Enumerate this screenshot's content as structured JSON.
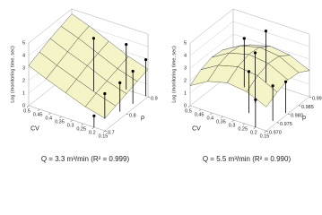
{
  "chart_data": [
    {
      "type": "surface3d",
      "caption": "Q = 3.3 m³/min (R² = 0.999)",
      "xlabel": "CV",
      "ylabel": "ρ",
      "zlabel": "Log (monitoring time, sec)",
      "xlim": [
        0.5,
        0.15
      ],
      "xticks": [
        0.5,
        0.45,
        0.4,
        0.35,
        0.3,
        0.25,
        0.2,
        0.15
      ],
      "ylim": [
        0.7,
        0.9
      ],
      "yticks": [
        0.7,
        0.8,
        0.9
      ],
      "zlim": [
        0,
        5
      ],
      "zticks": [
        0,
        1,
        2,
        3,
        4,
        5
      ],
      "surface": {
        "x": [
          0.5,
          0.42,
          0.33,
          0.24,
          0.15
        ],
        "y": [
          0.7,
          0.75,
          0.8,
          0.85,
          0.9
        ],
        "z": [
          [
            3.2,
            2.6,
            2.0,
            1.4,
            1.0
          ],
          [
            3.6,
            3.0,
            2.4,
            1.8,
            1.3
          ],
          [
            4.0,
            3.4,
            2.8,
            2.1,
            1.6
          ],
          [
            4.3,
            3.8,
            3.1,
            2.4,
            1.9
          ],
          [
            4.6,
            4.1,
            3.4,
            2.7,
            2.2
          ]
        ]
      },
      "points": {
        "x": [
          0.35,
          0.25,
          0.2,
          0.18,
          0.17,
          0.16,
          0.2
        ],
        "y": [
          0.85,
          0.9,
          0.75,
          0.8,
          0.85,
          0.9,
          0.7
        ],
        "z": [
          4.2,
          3.6,
          2.0,
          2.3,
          2.6,
          2.9,
          0.9
        ]
      },
      "surface_color": "#f4f4c6",
      "line_color": "#333333"
    },
    {
      "type": "surface3d",
      "caption": "Q = 5.5 m³/min (R² = 0.990)",
      "xlabel": "CV",
      "ylabel": "ρ",
      "zlabel": "Log (monitoring time, sec)",
      "xlim": [
        0.5,
        0.15
      ],
      "xticks": [
        0.5,
        0.45,
        0.4,
        0.35,
        0.3,
        0.25,
        0.2,
        0.15
      ],
      "ylim": [
        0.97,
        0.99
      ],
      "yticks": [
        {
          "value": 0.97,
          "label": "0.970"
        },
        {
          "value": 0.975,
          "label": "0.975"
        },
        {
          "value": 0.98,
          "label": "0.980"
        },
        {
          "value": 0.985,
          "label": "0.985"
        },
        {
          "value": 0.99,
          "label": "0.990"
        }
      ],
      "zlim": [
        0,
        5
      ],
      "zticks": [
        0,
        1,
        2,
        3,
        4,
        5
      ],
      "surface": {
        "x": [
          0.5,
          0.42,
          0.33,
          0.24,
          0.15
        ],
        "y": [
          0.97,
          0.975,
          0.98,
          0.985,
          0.99
        ],
        "z": [
          [
            1.6,
            2.4,
            2.8,
            2.6,
            1.9
          ],
          [
            2.2,
            3.0,
            3.4,
            3.2,
            2.4
          ],
          [
            2.5,
            3.3,
            3.7,
            3.5,
            2.7
          ],
          [
            2.4,
            3.2,
            3.6,
            3.4,
            2.6
          ],
          [
            1.8,
            2.6,
            3.0,
            2.8,
            2.1
          ]
        ]
      },
      "points": {
        "x": [
          0.4,
          0.35,
          0.3,
          0.28,
          0.2,
          0.17,
          0.16
        ],
        "y": [
          0.985,
          0.99,
          0.98,
          0.975,
          0.97,
          0.975,
          0.98
        ],
        "z": [
          3.9,
          4.1,
          4.0,
          3.3,
          2.2,
          2.8,
          2.5
        ]
      },
      "surface_color": "#f4f4c6",
      "line_color": "#333333"
    }
  ]
}
